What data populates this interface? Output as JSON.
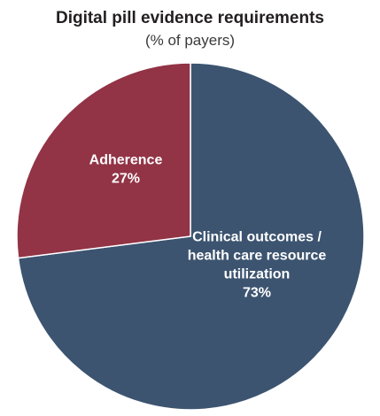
{
  "chart_data": {
    "type": "pie",
    "title": "Digital pill evidence requirements",
    "subtitle": "(% of payers)",
    "slices": [
      {
        "label_lines": [
          "Clinical outcomes /",
          "health care resource",
          "utilization"
        ],
        "value": 73,
        "value_label": "73%",
        "color": "#3c5470"
      },
      {
        "label_lines": [
          "Adherence"
        ],
        "value": 27,
        "value_label": "27%",
        "color": "#923346"
      }
    ],
    "start_angle_deg": 0,
    "direction": "clockwise",
    "slice_border_color": "#ffffff"
  }
}
